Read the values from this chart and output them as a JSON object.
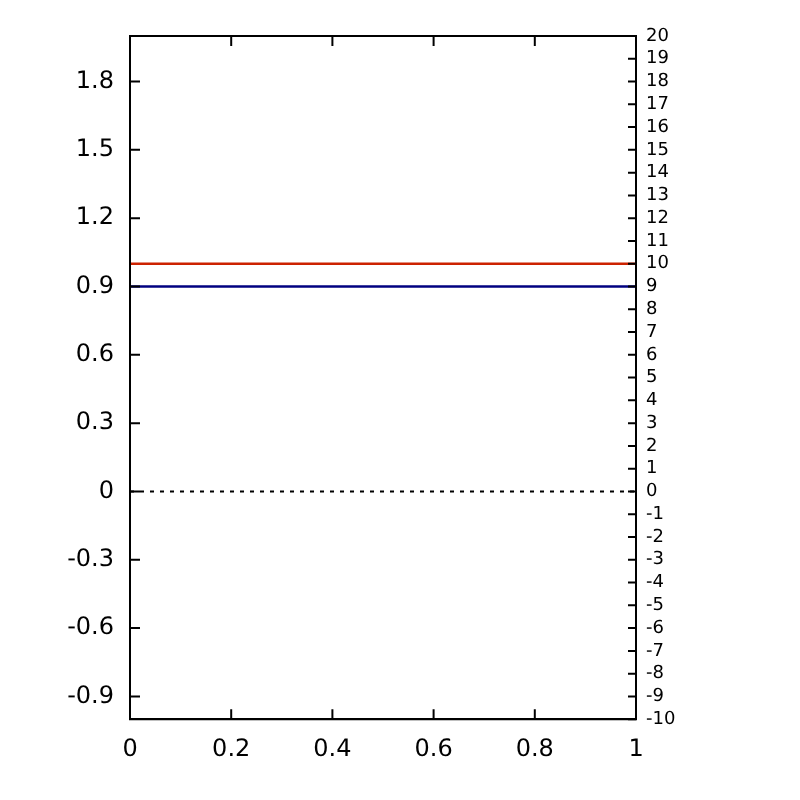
{
  "chart_data": {
    "type": "line",
    "x": [
      0,
      1
    ],
    "series": [
      {
        "color": "#cc2200",
        "values": [
          1,
          1
        ]
      },
      {
        "color": "#000080",
        "values": [
          0.9,
          0.9
        ]
      }
    ],
    "xlim": [
      0,
      1
    ],
    "xticks": [
      0,
      {
        "value": 0.2,
        "label": "0.2"
      },
      {
        "value": 0.4,
        "label": "0.4"
      },
      {
        "value": 0.6,
        "label": "0.6"
      },
      {
        "value": 0.8,
        "label": "0.8"
      },
      1
    ],
    "ylim": [
      -1,
      2
    ],
    "yticks": [
      {
        "value": -0.9,
        "label": "-0.9"
      },
      {
        "value": -0.6,
        "label": "-0.6"
      },
      {
        "value": -0.3,
        "label": "-0.3"
      },
      0,
      {
        "value": 0.3,
        "label": "0.3"
      },
      {
        "value": 0.6,
        "label": "0.6"
      },
      {
        "value": 0.9,
        "label": "0.9"
      },
      {
        "value": 1.2,
        "label": "1.2"
      },
      {
        "value": 1.5,
        "label": "1.5"
      },
      {
        "value": 1.8,
        "label": "1.8"
      }
    ],
    "y2lim": [
      -10,
      20
    ],
    "y2ticks": [
      -10,
      -9,
      -8,
      -7,
      -6,
      -5,
      -4,
      -3,
      -2,
      -1,
      0,
      1,
      2,
      3,
      4,
      5,
      6,
      7,
      8,
      9,
      10,
      11,
      12,
      13,
      14,
      15,
      16,
      17,
      18,
      19,
      20
    ],
    "ref_lines": [
      {
        "axis": "y",
        "value": 0,
        "color": "#000000",
        "line_style": "dotted"
      }
    ],
    "grid": false,
    "legend": false,
    "marker": "none",
    "line_style": "solid"
  }
}
